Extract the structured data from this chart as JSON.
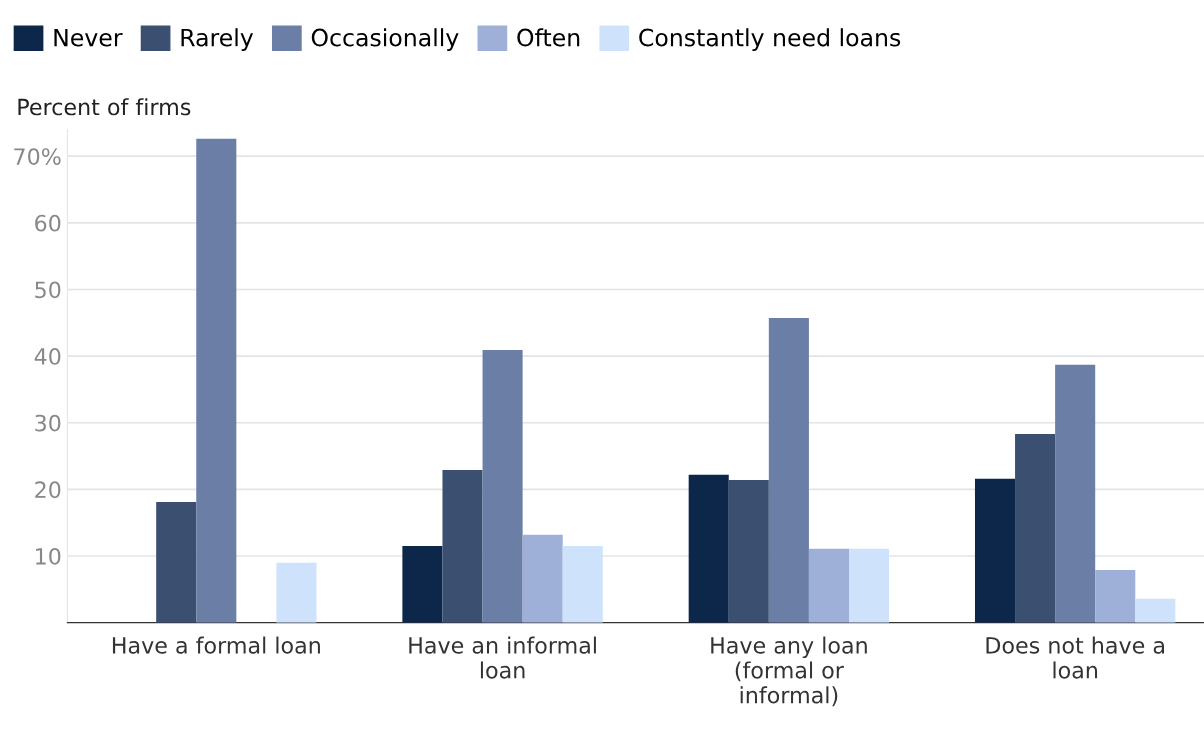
{
  "chart_data": {
    "type": "bar",
    "ylabel": "Percent of firms",
    "categories": [
      "Have a formal loan",
      "Have an informal\nloan",
      "Have any loan\n(formal or\ninformal)",
      "Does not have a\nloan"
    ],
    "series": [
      {
        "name": "Never",
        "color": "#0c2749",
        "values": [
          0,
          11.5,
          22.2,
          21.6
        ]
      },
      {
        "name": "Rarely",
        "color": "#3b4f71",
        "values": [
          18.1,
          22.9,
          21.4,
          28.3
        ]
      },
      {
        "name": "Occasionally",
        "color": "#6b7fa6",
        "values": [
          72.6,
          40.9,
          45.7,
          38.7
        ]
      },
      {
        "name": "Often",
        "color": "#9eb0d8",
        "values": [
          0,
          13.2,
          11.1,
          7.9
        ]
      },
      {
        "name": "Constantly need loans",
        "color": "#cfe2fc",
        "values": [
          9.0,
          11.5,
          11.1,
          3.6
        ]
      }
    ],
    "ylim": [
      0,
      74
    ],
    "yticks": [
      10,
      20,
      30,
      40,
      50,
      60,
      {
        "value": 70,
        "label": "70%"
      }
    ],
    "grid": "y",
    "legend": "top left"
  }
}
